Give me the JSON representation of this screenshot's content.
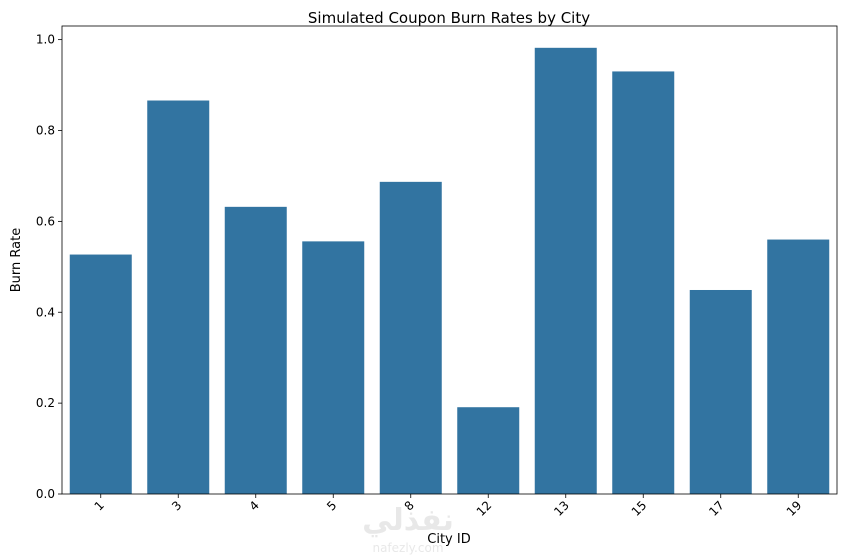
{
  "chart_data": {
    "type": "bar",
    "title": "Simulated Coupon Burn Rates by City",
    "xlabel": "City ID",
    "ylabel": "Burn Rate",
    "categories": [
      "1",
      "3",
      "4",
      "5",
      "8",
      "12",
      "13",
      "15",
      "17",
      "19"
    ],
    "values": [
      0.527,
      0.866,
      0.632,
      0.556,
      0.687,
      0.191,
      0.982,
      0.93,
      0.449,
      0.56
    ],
    "ylim": [
      0,
      1.03
    ],
    "yticks": [
      "0.0",
      "0.2",
      "0.4",
      "0.6",
      "0.8",
      "1.0"
    ],
    "bar_color": "#3274a1",
    "grid": false,
    "xtick_rotation": "45"
  },
  "watermark": {
    "text": "نفذلي",
    "subtext": "nafezly.com"
  }
}
